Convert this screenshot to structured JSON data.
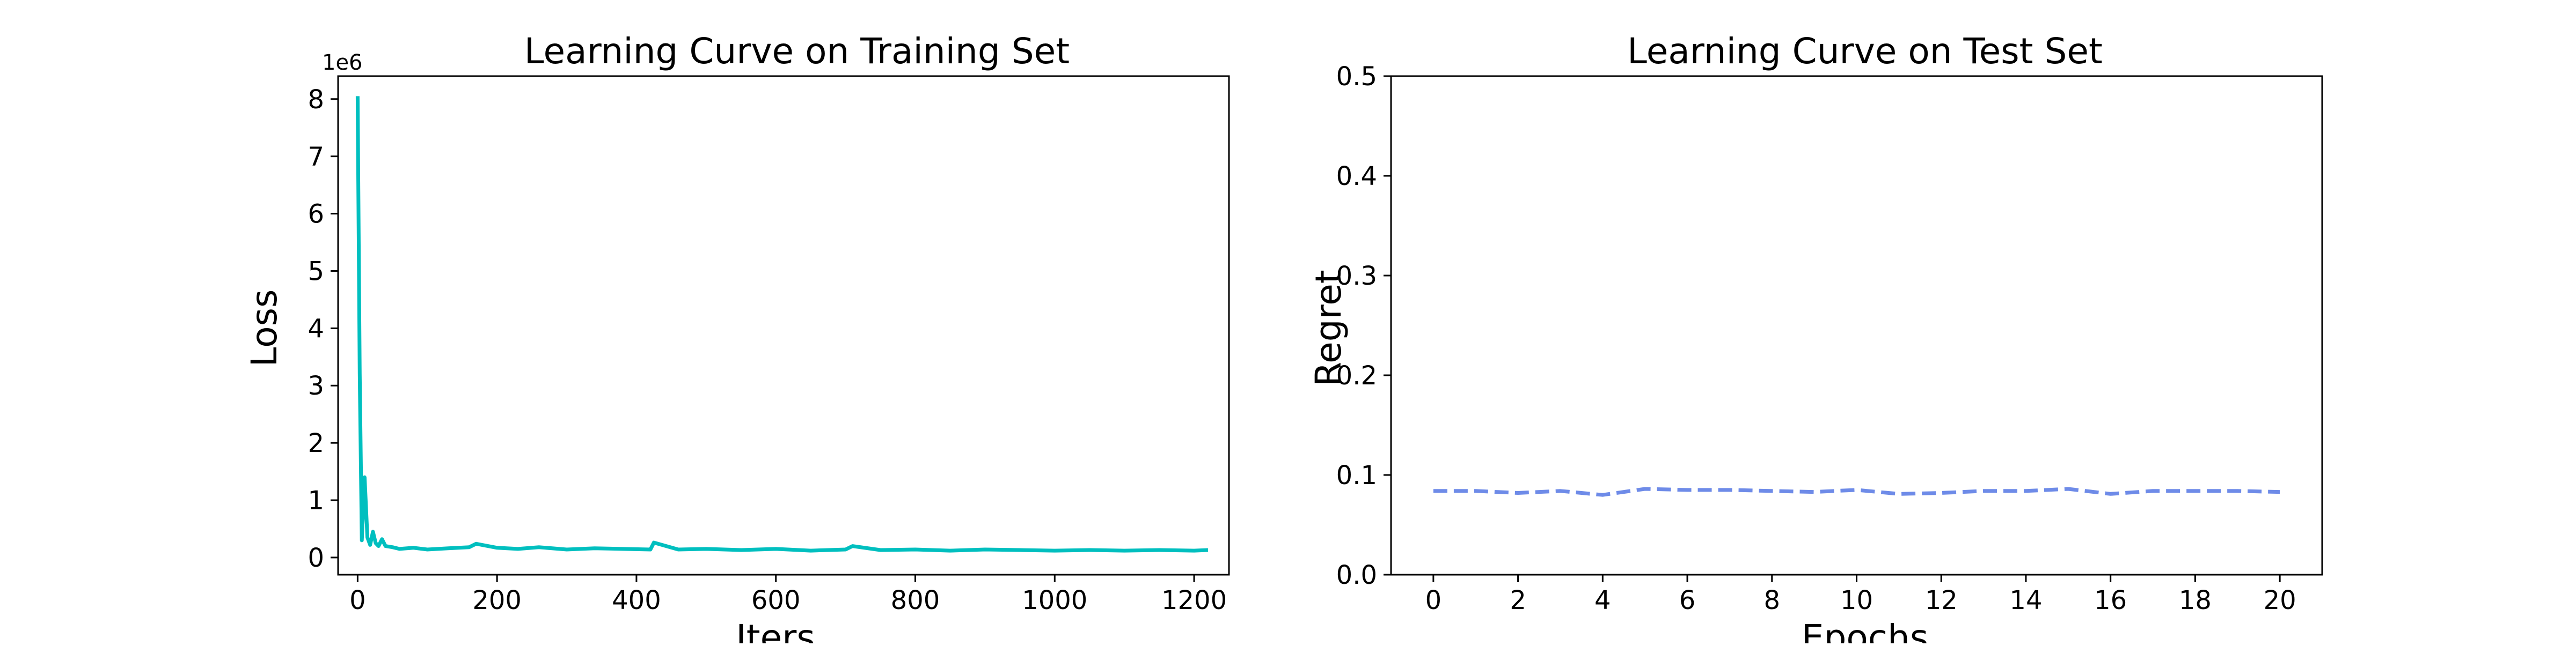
{
  "figure": {
    "colors": {
      "train_line": "#00BFBF",
      "test_line": "#6E8BE8",
      "axes": "#000000",
      "background": "#FFFFFF"
    }
  },
  "chart_data": [
    {
      "type": "line",
      "title": "Learning Curve on Training Set",
      "xlabel": "Iters",
      "ylabel": "Loss",
      "y_offset_label": "1e6",
      "xlim": [
        -28,
        1250
      ],
      "ylim": [
        -0.3,
        8.4
      ],
      "grid": false,
      "line_style": "solid",
      "color": "#00BFBF",
      "xticks": [
        0,
        200,
        400,
        600,
        800,
        1000,
        1200
      ],
      "xtick_labels": [
        "0",
        "200",
        "400",
        "600",
        "800",
        "1000",
        "1200"
      ],
      "yticks": [
        0,
        1,
        2,
        3,
        4,
        5,
        6,
        7,
        8
      ],
      "ytick_labels": [
        "0",
        "1",
        "2",
        "3",
        "4",
        "5",
        "6",
        "7",
        "8"
      ],
      "series": [
        {
          "x": [
            0,
            3,
            6,
            10,
            14,
            18,
            22,
            26,
            30,
            35,
            40,
            50,
            60,
            80,
            100,
            130,
            160,
            170,
            200,
            230,
            260,
            300,
            340,
            380,
            420,
            425,
            460,
            500,
            550,
            600,
            650,
            700,
            710,
            750,
            800,
            850,
            900,
            950,
            1000,
            1050,
            1100,
            1150,
            1200,
            1220
          ],
          "y": [
            8.05,
            3.2,
            0.3,
            1.4,
            0.35,
            0.22,
            0.45,
            0.25,
            0.2,
            0.32,
            0.2,
            0.18,
            0.15,
            0.17,
            0.14,
            0.16,
            0.18,
            0.24,
            0.17,
            0.15,
            0.18,
            0.14,
            0.16,
            0.15,
            0.14,
            0.26,
            0.14,
            0.15,
            0.13,
            0.15,
            0.12,
            0.14,
            0.2,
            0.13,
            0.14,
            0.12,
            0.14,
            0.13,
            0.12,
            0.13,
            0.12,
            0.13,
            0.12,
            0.13
          ]
        }
      ]
    },
    {
      "type": "line",
      "title": "Learning Curve on Test Set",
      "xlabel": "Epochs",
      "ylabel": "Regret",
      "xlim": [
        -1,
        21
      ],
      "ylim": [
        0.0,
        0.5
      ],
      "grid": false,
      "line_style": "dashed",
      "color": "#6E8BE8",
      "xticks": [
        0,
        2,
        4,
        6,
        8,
        10,
        12,
        14,
        16,
        18,
        20
      ],
      "xtick_labels": [
        "0",
        "2",
        "4",
        "6",
        "8",
        "10",
        "12",
        "14",
        "16",
        "18",
        "20"
      ],
      "yticks": [
        0.0,
        0.1,
        0.2,
        0.3,
        0.4,
        0.5
      ],
      "ytick_labels": [
        "0.0",
        "0.1",
        "0.2",
        "0.3",
        "0.4",
        "0.5"
      ],
      "series": [
        {
          "x": [
            0,
            1,
            2,
            3,
            4,
            5,
            6,
            7,
            8,
            9,
            10,
            11,
            12,
            13,
            14,
            15,
            16,
            17,
            18,
            19,
            20
          ],
          "y": [
            0.084,
            0.084,
            0.082,
            0.084,
            0.08,
            0.086,
            0.085,
            0.085,
            0.084,
            0.083,
            0.085,
            0.081,
            0.082,
            0.084,
            0.084,
            0.086,
            0.081,
            0.084,
            0.084,
            0.084,
            0.083
          ]
        }
      ]
    }
  ]
}
